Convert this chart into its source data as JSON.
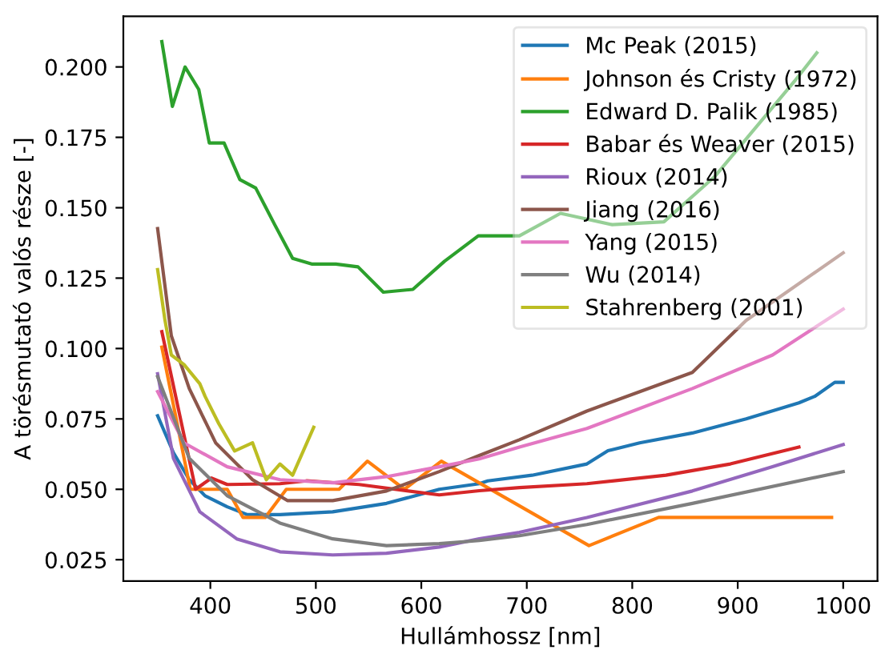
{
  "chart_data": {
    "type": "line",
    "xlabel": "Hullámhossz [nm]",
    "ylabel": "A törésmutató valós része [-]",
    "xlim": [
      317.5,
      1032.5
    ],
    "ylim": [
      0.0174,
      0.218
    ],
    "xticks": [
      400,
      500,
      600,
      700,
      800,
      900,
      1000
    ],
    "yticks": [
      {
        "value": 0.025,
        "label": "0.025"
      },
      {
        "value": 0.05,
        "label": "0.050"
      },
      {
        "value": 0.075,
        "label": "0.075"
      },
      {
        "value": 0.1,
        "label": "0.100"
      },
      {
        "value": 0.125,
        "label": "0.125"
      },
      {
        "value": 0.15,
        "label": "0.150"
      },
      {
        "value": 0.175,
        "label": "0.175"
      },
      {
        "value": 0.2,
        "label": "0.200"
      }
    ],
    "legend": "top right",
    "grid": false,
    "series": [
      {
        "name": "Mc Peak (2015)",
        "color": "#1f77b4",
        "x": [
          350,
          365,
          380,
          395,
          416,
          435,
          466,
          516,
          567,
          617,
          655,
          663,
          705,
          757,
          777,
          807,
          857,
          908,
          958,
          973,
          992,
          1000
        ],
        "values": [
          0.0761,
          0.063,
          0.0534,
          0.0477,
          0.0438,
          0.041,
          0.041,
          0.042,
          0.045,
          0.05,
          0.052,
          0.053,
          0.055,
          0.059,
          0.0637,
          0.0665,
          0.07,
          0.075,
          0.0807,
          0.083,
          0.088,
          0.088
        ]
      },
      {
        "name": "Johnson és Cristy (1972)",
        "color": "#ff7f0e",
        "x": [
          354,
          381,
          416,
          431,
          452,
          472,
          522,
          549,
          584,
          619,
          759,
          825,
          989
        ],
        "values": [
          0.1005,
          0.05,
          0.05,
          0.04,
          0.04,
          0.05,
          0.05,
          0.06,
          0.05,
          0.06,
          0.03,
          0.04,
          0.04
        ]
      },
      {
        "name": "Edward D. Palik (1985)",
        "color": "#2ca02c",
        "x": [
          354,
          364,
          376,
          389,
          399,
          413,
          428,
          443,
          461,
          478,
          496,
          519,
          540,
          564,
          592,
          622,
          654,
          693,
          732,
          781,
          830,
          878,
          954,
          975
        ],
        "values": [
          0.209,
          0.186,
          0.2,
          0.192,
          0.173,
          0.173,
          0.16,
          0.157,
          0.144,
          0.132,
          0.13,
          0.13,
          0.129,
          0.12,
          0.121,
          0.131,
          0.14,
          0.14,
          0.148,
          0.144,
          0.145,
          0.161,
          0.195,
          0.205
        ]
      },
      {
        "name": "Babar és Weaver (2015)",
        "color": "#d62728",
        "x": [
          354,
          386,
          401,
          416,
          466,
          491,
          541,
          617,
          655,
          693,
          757,
          832,
          893,
          958
        ],
        "values": [
          0.106,
          0.05,
          0.054,
          0.0517,
          0.052,
          0.053,
          0.0517,
          0.048,
          0.0495,
          0.0506,
          0.052,
          0.055,
          0.059,
          0.065
        ]
      },
      {
        "name": "Rioux (2014)",
        "color": "#9467bd",
        "x": [
          350,
          365,
          390,
          425,
          466,
          516,
          567,
          617,
          655,
          693,
          757,
          857,
          933,
          1000
        ],
        "values": [
          0.091,
          0.061,
          0.042,
          0.0324,
          0.0278,
          0.0267,
          0.0273,
          0.0295,
          0.0324,
          0.0347,
          0.04,
          0.0494,
          0.058,
          0.0659
        ]
      },
      {
        "name": "Jiang (2016)",
        "color": "#8c564b",
        "x": [
          350,
          363,
          380,
          405,
          440,
          473,
          516,
          567,
          617,
          655,
          693,
          757,
          857,
          908,
          1000
        ],
        "values": [
          0.1426,
          0.1045,
          0.0858,
          0.0665,
          0.0534,
          0.046,
          0.046,
          0.0494,
          0.0563,
          0.062,
          0.0676,
          0.0778,
          0.0915,
          0.11,
          0.134
        ]
      },
      {
        "name": "Yang (2015)",
        "color": "#e377c2",
        "x": [
          350,
          375,
          416,
          466,
          516,
          567,
          617,
          655,
          693,
          757,
          857,
          933,
          1000
        ],
        "values": [
          0.0847,
          0.0665,
          0.058,
          0.0534,
          0.0523,
          0.0545,
          0.058,
          0.0608,
          0.065,
          0.0716,
          0.0858,
          0.0977,
          0.114
        ]
      },
      {
        "name": "Wu (2014)",
        "color": "#7f7f7f",
        "x": [
          350,
          380,
          416,
          466,
          516,
          567,
          617,
          655,
          693,
          757,
          857,
          1000
        ],
        "values": [
          0.09,
          0.061,
          0.0477,
          0.038,
          0.0324,
          0.03,
          0.0307,
          0.0318,
          0.0335,
          0.0375,
          0.045,
          0.0563
        ]
      },
      {
        "name": "Stahrenberg (2001)",
        "color": "#bcbd22",
        "x": [
          350,
          357,
          363,
          375,
          390,
          395,
          408,
          423,
          440,
          453,
          466,
          478,
          498
        ],
        "values": [
          0.128,
          0.11,
          0.0977,
          0.0943,
          0.0875,
          0.083,
          0.0733,
          0.0636,
          0.0665,
          0.0534,
          0.059,
          0.055,
          0.072
        ]
      }
    ]
  }
}
